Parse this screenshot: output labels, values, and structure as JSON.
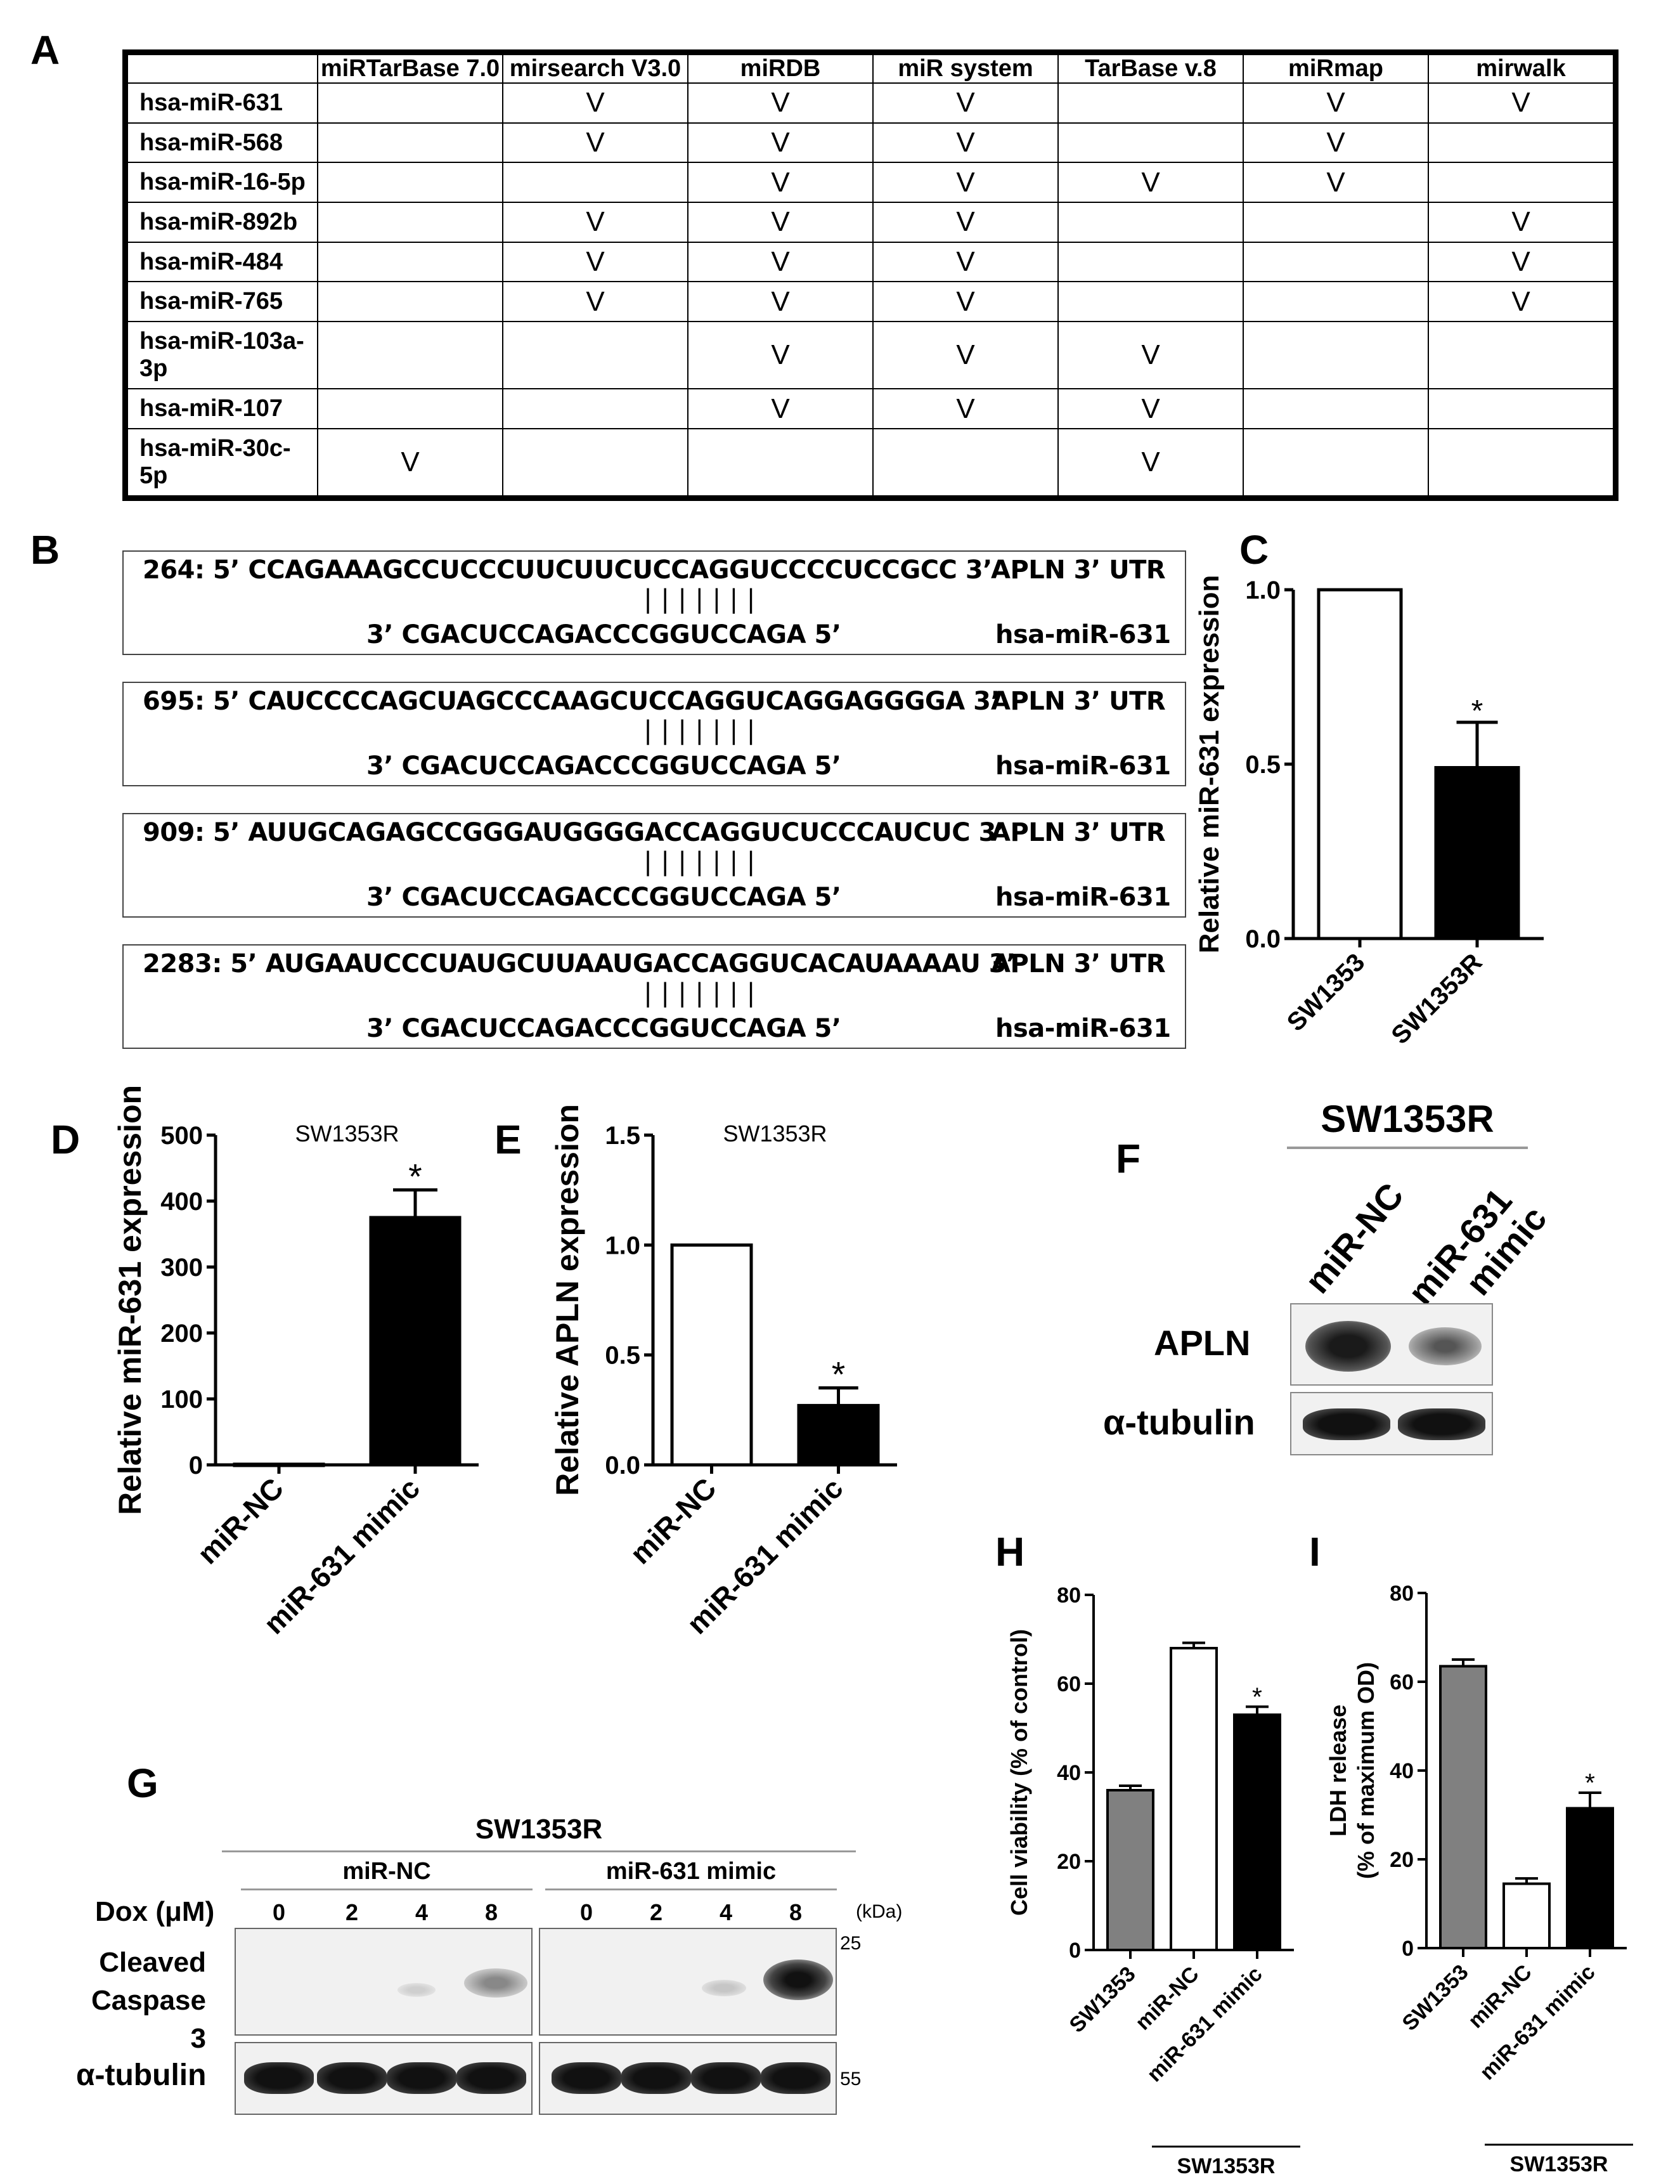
{
  "panels": {
    "A": "A",
    "B": "B",
    "C": "C",
    "D": "D",
    "E": "E",
    "F": "F",
    "G": "G",
    "H": "H",
    "I": "I"
  },
  "table": {
    "columns": [
      "",
      "miRTarBase 7.0",
      "mirsearch V3.0",
      "miRDB",
      "miR system",
      "TarBase v.8",
      "miRmap",
      "mirwalk"
    ],
    "rows": [
      {
        "name": "hsa-miR-631",
        "marks": [
          "",
          "V",
          "V",
          "V",
          "",
          "V",
          "V"
        ]
      },
      {
        "name": "hsa-miR-568",
        "marks": [
          "",
          "V",
          "V",
          "V",
          "",
          "V",
          ""
        ]
      },
      {
        "name": "hsa-miR-16-5p",
        "marks": [
          "",
          "",
          "V",
          "V",
          "V",
          "V",
          ""
        ]
      },
      {
        "name": "hsa-miR-892b",
        "marks": [
          "",
          "V",
          "V",
          "V",
          "",
          "",
          "V"
        ]
      },
      {
        "name": "hsa-miR-484",
        "marks": [
          "",
          "V",
          "V",
          "V",
          "",
          "",
          "V"
        ]
      },
      {
        "name": "hsa-miR-765",
        "marks": [
          "",
          "V",
          "V",
          "V",
          "",
          "",
          "V"
        ]
      },
      {
        "name": "hsa-miR-103a-3p",
        "marks": [
          "",
          "",
          "V",
          "V",
          "V",
          "",
          ""
        ]
      },
      {
        "name": "hsa-miR-107",
        "marks": [
          "",
          "",
          "V",
          "V",
          "V",
          "",
          ""
        ]
      },
      {
        "name": "hsa-miR-30c-5p",
        "marks": [
          "V",
          "",
          "",
          "",
          "V",
          "",
          ""
        ]
      }
    ]
  },
  "alignments": [
    {
      "top": "264: 5’ CCAGAAAGCCUCCCUUCUUCUCCAGGUCCCCUCCGCC 3’",
      "target": "APLN 3’ UTR",
      "bars": "|||||||",
      "bottom": "3’ CGACUCCAGACCCGGUCCAGA 5’",
      "mirna": "hsa-miR-631"
    },
    {
      "top": "695: 5’ CAUCCCCAGCUAGCCCAAGCUCCAGGUCAGGAGGGGA 3’",
      "target": "APLN 3’ UTR",
      "bars": "|||||||",
      "bottom": "3’ CGACUCCAGACCCGGUCCAGA 5’",
      "mirna": "hsa-miR-631"
    },
    {
      "top": "909: 5’ AUUGCAGAGCCGGGAUGGGGACCAGGUCUCCCAUCUC 3’",
      "target": "APLN 3’ UTR",
      "bars": "|||||||",
      "bottom": "3’ CGACUCCAGACCCGGUCCAGA 5’",
      "mirna": "hsa-miR-631"
    },
    {
      "top": "2283: 5’ AUGAAUCCCUAUGCUUAAUGACCAGGUCACAUAAAAU 3’",
      "target": "APLN 3’ UTR",
      "bars": "|||||||",
      "bottom": "3’ CGACUCCAGACCCGGUCCAGA 5’",
      "mirna": "hsa-miR-631"
    }
  ],
  "chart_data": [
    {
      "id": "C",
      "type": "bar",
      "ylabel": "Relative miR-631 expression",
      "title": "",
      "categories": [
        "SW1353",
        "SW1353R"
      ],
      "values": [
        1.0,
        0.49
      ],
      "errors": [
        0,
        0.13
      ],
      "fills": [
        "#ffffff",
        "#000000"
      ],
      "ylim": [
        0,
        1.0
      ],
      "ticks": [
        "0.0",
        "0.5",
        "1.0"
      ],
      "tickvals": [
        0,
        0.5,
        1.0
      ],
      "star": "*",
      "starIndex": 1
    },
    {
      "id": "D",
      "type": "bar",
      "ylabel": "Relative miR-631 expression",
      "title": "SW1353R",
      "categories": [
        "miR-NC",
        "miR-631 mimic"
      ],
      "values": [
        1,
        375
      ],
      "errors": [
        0,
        42
      ],
      "fills": [
        "#ffffff",
        "#000000"
      ],
      "ylim": [
        0,
        500
      ],
      "ticks": [
        "0",
        "100",
        "200",
        "300",
        "400",
        "500"
      ],
      "tickvals": [
        0,
        100,
        200,
        300,
        400,
        500
      ],
      "star": "*",
      "starIndex": 1
    },
    {
      "id": "E",
      "type": "bar",
      "ylabel": "Relative APLN expression",
      "title": "SW1353R",
      "categories": [
        "miR-NC",
        "miR-631 mimic"
      ],
      "values": [
        1.0,
        0.27
      ],
      "errors": [
        0,
        0.08
      ],
      "fills": [
        "#ffffff",
        "#000000"
      ],
      "ylim": [
        0,
        1.5
      ],
      "ticks": [
        "0.0",
        "0.5",
        "1.0",
        "1.5"
      ],
      "tickvals": [
        0,
        0.5,
        1.0,
        1.5
      ],
      "star": "*",
      "starIndex": 1
    },
    {
      "id": "H",
      "type": "bar",
      "ylabel": "Cell viability (% of control)",
      "title": "",
      "categories": [
        "SW1353",
        "miR-NC",
        "miR-631 mimic"
      ],
      "values": [
        36,
        68,
        53
      ],
      "errors": [
        1,
        1.2,
        1.8
      ],
      "fills": [
        "#808080",
        "#ffffff",
        "#000000"
      ],
      "ylim": [
        0,
        80
      ],
      "ticks": [
        "0",
        "20",
        "40",
        "60",
        "80"
      ],
      "tickvals": [
        0,
        20,
        40,
        60,
        80
      ],
      "star": "*",
      "starIndex": 2,
      "group": "SW1353R"
    },
    {
      "id": "I",
      "type": "bar",
      "ylabel": "LDH release",
      "ylabel2": "(% of maximum OD)",
      "title": "",
      "categories": [
        "SW1353",
        "miR-NC",
        "miR-631 mimic"
      ],
      "values": [
        63.5,
        14.5,
        31.5
      ],
      "errors": [
        1.5,
        1.2,
        3.5
      ],
      "fills": [
        "#808080",
        "#ffffff",
        "#000000"
      ],
      "ylim": [
        0,
        80
      ],
      "ticks": [
        "0",
        "20",
        "40",
        "60",
        "80"
      ],
      "tickvals": [
        0,
        20,
        40,
        60,
        80
      ],
      "star": "*",
      "starIndex": 2,
      "group": "SW1353R"
    }
  ],
  "blotF": {
    "title": "SW1353R",
    "lanes": [
      "miR-NC",
      "miR-631",
      "mimic"
    ],
    "rows": [
      "APLN",
      "α-tubulin"
    ]
  },
  "blotG": {
    "title": "SW1353R",
    "group1": "miR-NC",
    "group2": "miR-631 mimic",
    "doxLabel": "Dox (μM)",
    "doses": [
      "0",
      "2",
      "4",
      "8",
      "0",
      "2",
      "4",
      "8"
    ],
    "kda": "(kDa)",
    "row1a": "Cleaved",
    "row1b": "Caspase 3",
    "row2": "α-tubulin",
    "m25": "25",
    "m55": "55"
  }
}
